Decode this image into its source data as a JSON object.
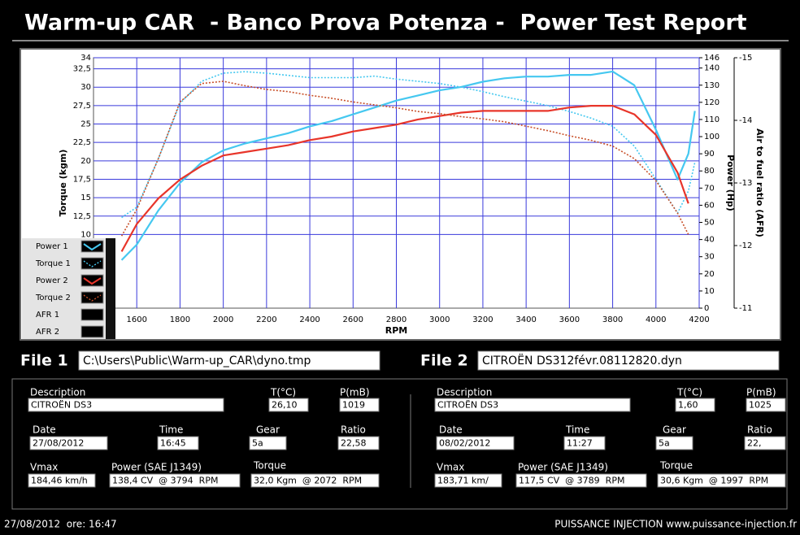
{
  "header": {
    "title": "Warm-up CAR  - Banco Prova Potenza -  Power Test Report"
  },
  "chart_data": {
    "type": "line",
    "xlabel": "RPM",
    "ylabel": "Torque (kgm)",
    "y2label": "Power (Hp)",
    "y3label": "Air to fuel ratio (AFR)",
    "x": [
      1530,
      1600,
      1700,
      1800,
      1900,
      2000,
      2100,
      2200,
      2300,
      2400,
      2500,
      2600,
      2700,
      2800,
      2900,
      3000,
      3100,
      3200,
      3300,
      3400,
      3500,
      3600,
      3700,
      3800,
      3900,
      4000,
      4100,
      4150,
      4180
    ],
    "xlim": [
      1400,
      4200
    ],
    "xticks": [
      1600,
      1800,
      2000,
      2200,
      2400,
      2600,
      2800,
      3000,
      3200,
      3400,
      3600,
      3800,
      4000,
      4200
    ],
    "ylim": [
      0,
      34
    ],
    "yticks": [
      34,
      {
        "value": 32.5,
        "label": "32,5"
      },
      30,
      {
        "value": 27.5,
        "label": "27,5"
      },
      25,
      {
        "value": 22.5,
        "label": "22,5"
      },
      20,
      {
        "value": 17.5,
        "label": "17,5"
      },
      15,
      {
        "value": 12.5,
        "label": "12,5"
      },
      10
    ],
    "y2lim": [
      0,
      146
    ],
    "y2ticks": [
      146,
      140,
      130,
      120,
      110,
      100,
      90,
      80,
      70,
      60,
      50,
      40,
      30,
      20,
      10,
      0
    ],
    "y3lim": [
      -11,
      -15
    ],
    "y3ticks": [
      -15,
      -14,
      -13,
      -12,
      -11
    ],
    "grid": true,
    "legend": "bottom-left",
    "series": [
      {
        "name": "Power 1",
        "color": "#45c8f0",
        "style": "solid",
        "axis": "y2",
        "values": [
          28,
          37,
          57,
          73,
          85,
          92,
          96,
          99,
          102,
          106,
          109,
          113,
          117,
          121,
          124,
          127,
          129,
          132,
          134,
          135,
          135,
          136,
          136,
          138,
          130,
          104,
          75,
          90,
          115
        ]
      },
      {
        "name": "Torque 1",
        "color": "#45c8f0",
        "style": "dotted",
        "axis": "y",
        "values": [
          12.3,
          13.7,
          20.3,
          27.8,
          30.8,
          31.9,
          32.1,
          31.9,
          31.6,
          31.3,
          31.3,
          31.3,
          31.5,
          31.1,
          30.8,
          30.5,
          30.0,
          29.4,
          28.7,
          28.1,
          27.5,
          26.7,
          25.8,
          24.7,
          22.0,
          17.5,
          12.9,
          15.9,
          19.8
        ]
      },
      {
        "name": "Power 2",
        "color": "#e8352a",
        "style": "solid",
        "axis": "y2",
        "values": [
          33,
          49,
          64,
          75,
          83,
          89,
          91,
          93,
          95,
          98,
          100,
          103,
          105,
          107,
          110,
          112,
          114,
          115,
          115,
          115,
          115,
          117,
          118,
          118,
          113,
          101,
          79,
          61,
          null
        ]
      },
      {
        "name": "Torque 2",
        "color": "#c8502a",
        "style": "dotted",
        "axis": "y",
        "values": [
          9.8,
          13.4,
          20.3,
          28.0,
          30.5,
          30.8,
          30.2,
          29.7,
          29.4,
          28.9,
          28.5,
          28.0,
          27.6,
          27.2,
          26.7,
          26.4,
          26.0,
          25.7,
          25.3,
          24.7,
          24.1,
          23.4,
          22.8,
          22.0,
          20.3,
          17.3,
          12.9,
          10.0,
          null
        ]
      },
      {
        "name": "AFR 1",
        "axis": "y3",
        "values": [
          null,
          null,
          null,
          null,
          null,
          null,
          null,
          null,
          null,
          null,
          null,
          null,
          null,
          null,
          null,
          null,
          null,
          null,
          null,
          null,
          null,
          null,
          null,
          null,
          null,
          null,
          null,
          null,
          null
        ]
      },
      {
        "name": "AFR 2",
        "axis": "y3",
        "values": [
          null,
          null,
          null,
          null,
          null,
          null,
          null,
          null,
          null,
          null,
          null,
          null,
          null,
          null,
          null,
          null,
          null,
          null,
          null,
          null,
          null,
          null,
          null,
          null,
          null,
          null,
          null,
          null,
          null
        ]
      }
    ]
  },
  "files": [
    {
      "label": "File 1",
      "path": "C:\\Users\\Public\\Warm-up_CAR\\dyno.tmp"
    },
    {
      "label": "File 2",
      "path": "CITROËN DS312févr.08112820.dyn"
    }
  ],
  "panels": [
    {
      "fields": [
        {
          "label": "Description",
          "value": "CITROËN DS3"
        },
        {
          "label": "T(°C)",
          "value": "26,10"
        },
        {
          "label": "P(mB)",
          "value": "1019"
        },
        {
          "label": "Date",
          "value": "27/08/2012"
        },
        {
          "label": "Time",
          "value": "16:45"
        },
        {
          "label": "Gear",
          "value": "5a"
        },
        {
          "label": "Ratio",
          "value": "22,58"
        },
        {
          "label": "Vmax",
          "value": "184,46 km/h"
        },
        {
          "label": "Power (SAE J1349)",
          "value": "138,4 CV  @ 3794  RPM"
        },
        {
          "label": "Torque",
          "value": "32,0 Kgm  @ 2072  RPM"
        }
      ]
    },
    {
      "fields": [
        {
          "label": "Description",
          "value": "CITROËN DS3"
        },
        {
          "label": "T(°C)",
          "value": "1,60"
        },
        {
          "label": "P(mB)",
          "value": "1025"
        },
        {
          "label": "Date",
          "value": "08/02/2012"
        },
        {
          "label": "Time",
          "value": "11:27"
        },
        {
          "label": "Gear",
          "value": "5a"
        },
        {
          "label": "Ratio",
          "value": "22,"
        },
        {
          "label": "Vmax",
          "value": "183,71 km/"
        },
        {
          "label": "Power (SAE J1349)",
          "value": "117,5 CV  @ 3789  RPM"
        },
        {
          "label": "Torque",
          "value": "30,6 Kgm  @ 1997  RPM"
        }
      ]
    }
  ],
  "footer": {
    "left": "27/08/2012  ore: 16:47",
    "right": "PUISSANCE INJECTION www.puissance-injection.fr"
  }
}
